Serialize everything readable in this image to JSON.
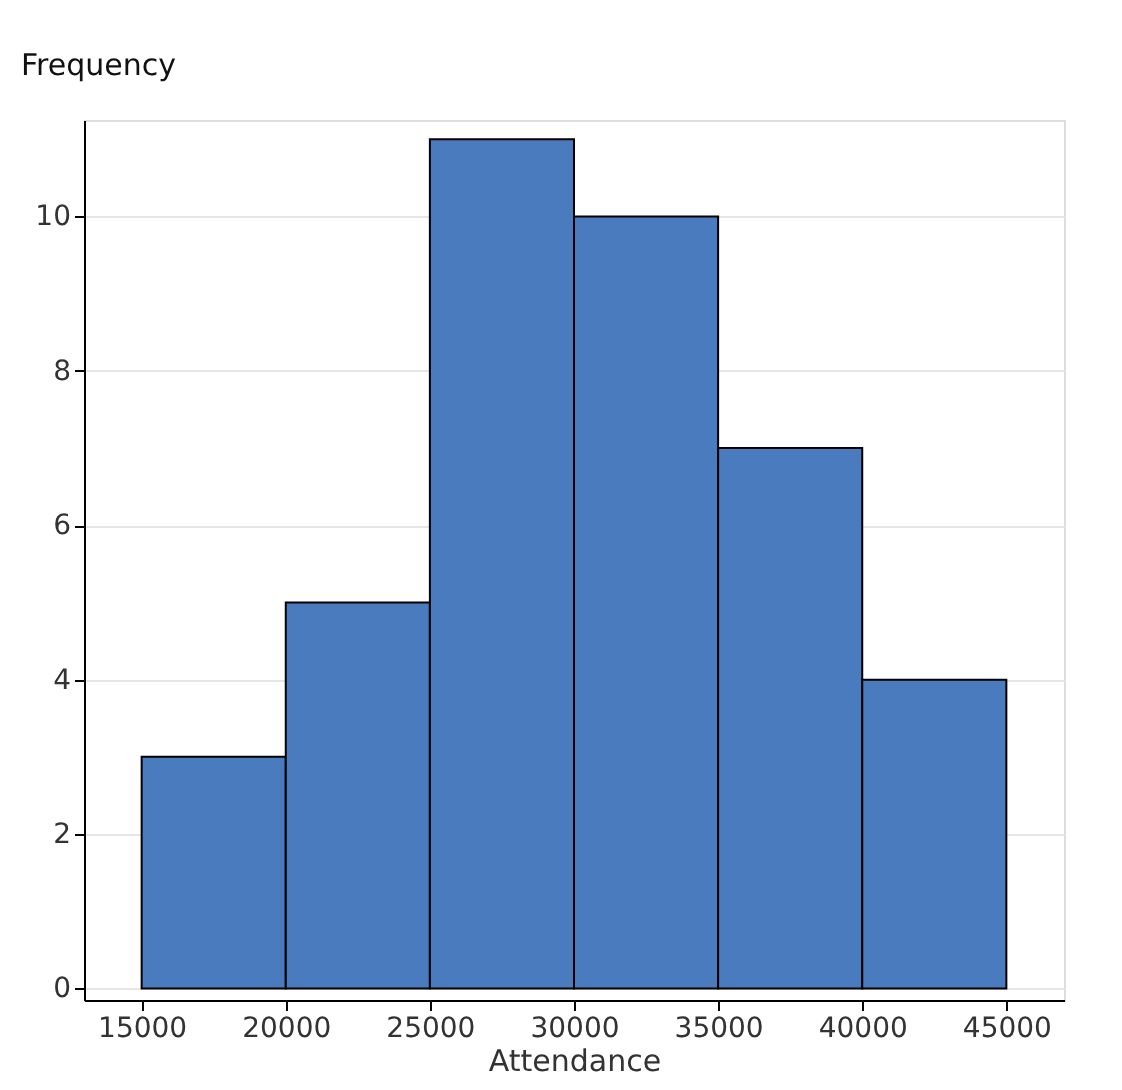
{
  "chart_data": {
    "type": "histogram",
    "xlabel": "Attendance",
    "ylabel": "Frequency",
    "bins": [
      15000,
      20000,
      25000,
      30000,
      35000,
      40000,
      45000
    ],
    "values": [
      3,
      5,
      11,
      10,
      7,
      4
    ],
    "color": "#4a7bbf",
    "xlim": [
      13000,
      47000
    ],
    "xticks": [
      15000,
      20000,
      25000,
      30000,
      35000,
      40000,
      45000
    ],
    "ylim": [
      -0.15,
      11.25
    ],
    "yticks": [
      0,
      2,
      4,
      6,
      8,
      10
    ],
    "grid": "y"
  }
}
